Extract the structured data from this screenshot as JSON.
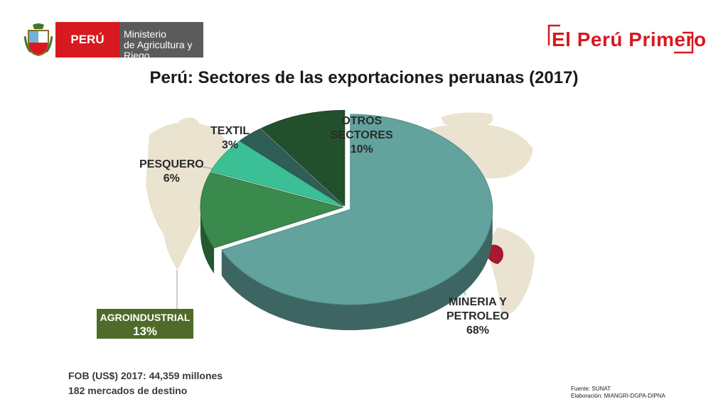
{
  "header": {
    "logo_country": "PERÚ",
    "ministry_line1": "Ministerio",
    "ministry_line2": "de Agricultura y Riego",
    "brand": "El Perú Primero"
  },
  "chart_data": {
    "type": "pie",
    "title": "Perú: Sectores de las exportaciones peruanas (2017)",
    "slices": [
      {
        "label": "MINERIA Y PETROLEO",
        "value": 68,
        "value_label": "68%",
        "color": "#62a39e"
      },
      {
        "label": "AGROINDUSTRIAL",
        "value": 13,
        "value_label": "13%",
        "color": "#3a8a4e"
      },
      {
        "label": "PESQUERO",
        "value": 6,
        "value_label": "6%",
        "color": "#3bbf94"
      },
      {
        "label": "TEXTIL",
        "value": 3,
        "value_label": "3%",
        "color": "#2f5e56"
      },
      {
        "label": "OTROS SECTORES",
        "value": 10,
        "value_label": "10%",
        "color": "#22502c"
      }
    ]
  },
  "labels": {
    "mineria_l1": "MINERIA Y",
    "mineria_l2": "PETROLEO",
    "mineria_pct": "68%",
    "agro_name": "AGROINDUSTRIAL",
    "agro_pct": "13%",
    "pesquero_name": "PESQUERO",
    "pesquero_pct": "6%",
    "textil_name": "TEXTIL",
    "textil_pct": "3%",
    "otros_l1": "OTROS",
    "otros_l2": "SECTORES",
    "otros_pct": "10%"
  },
  "footer": {
    "fob_line": "FOB (US$) 2017: 44,359 millones",
    "markets_line": "182 mercados de destino",
    "source": "Fuente: SUNAT",
    "elaboration": "Elaboración: MIANGRI-DGPA-DIPNA"
  }
}
